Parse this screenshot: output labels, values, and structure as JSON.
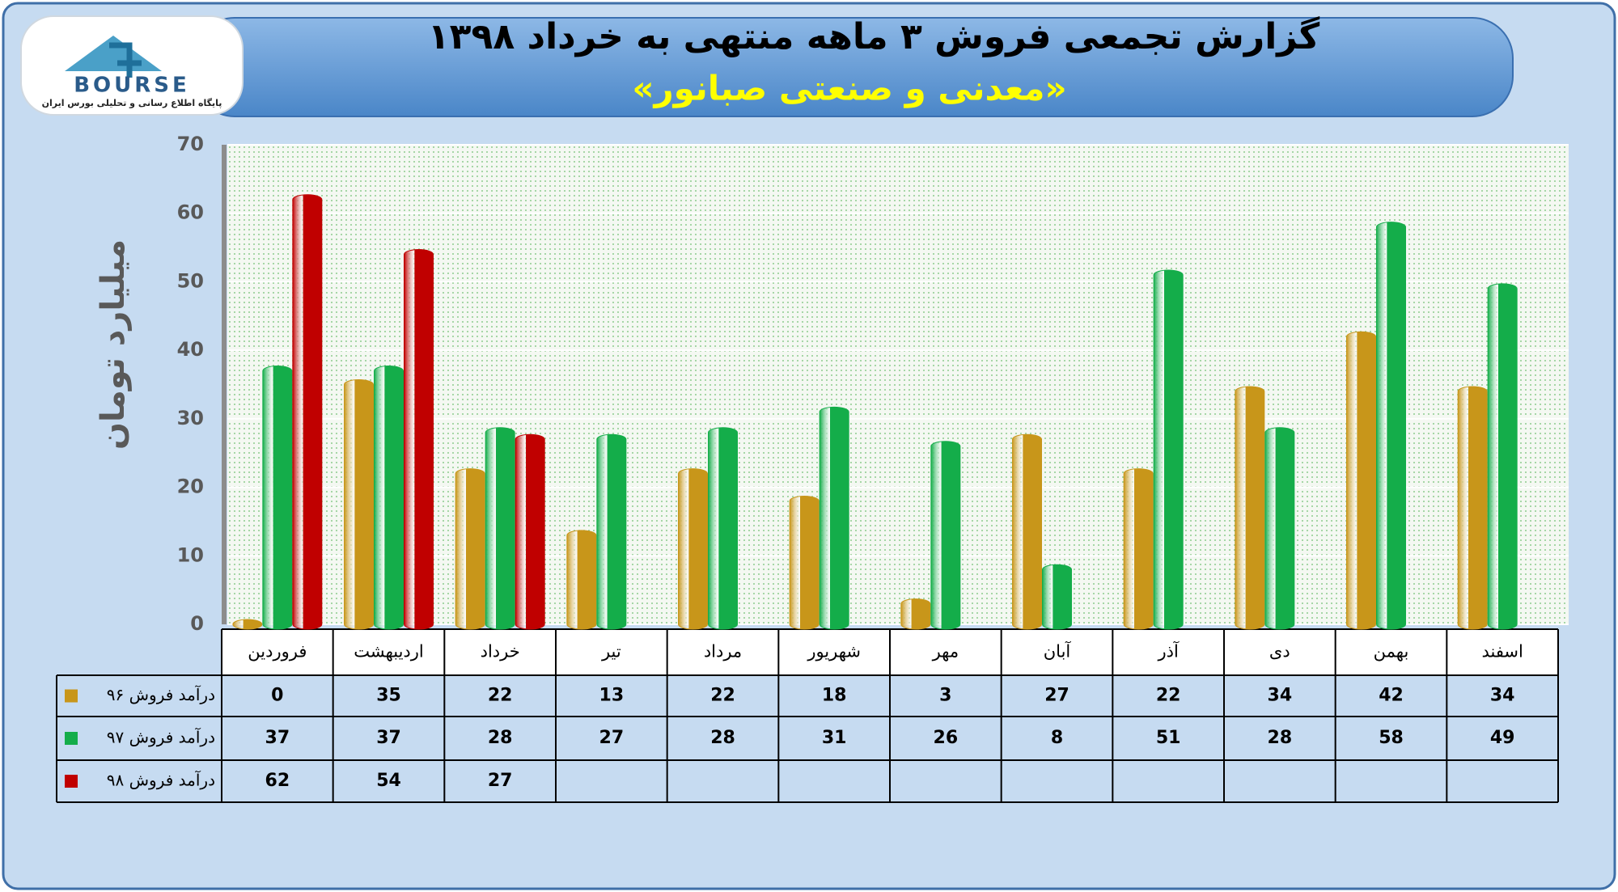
{
  "logo": {
    "name": "BOURSE",
    "tagline": "پایگاه اطلاع رسانی و تحلیلی بورس ایران"
  },
  "chart_data": {
    "type": "bar",
    "title": "گزارش تجمعی فروش ۳ ماهه منتهی به خرداد ۱۳۹۸",
    "subtitle": "«معدنی و صنعتی صبانور»",
    "y_label": "میلیارد تومان",
    "categories": [
      "فروردین",
      "اردیبهشت",
      "خرداد",
      "تیر",
      "مرداد",
      "شهریور",
      "مهر",
      "آبان",
      "آذر",
      "دی",
      "بهمن",
      "اسفند"
    ],
    "series": [
      {
        "name": "درآمد فروش ۹۶",
        "color": "#c8961a",
        "values": [
          0,
          35,
          22,
          13,
          22,
          18,
          3,
          27,
          22,
          34,
          42,
          34
        ]
      },
      {
        "name": "درآمد فروش ۹۷",
        "color": "#14ad4a",
        "values": [
          37,
          37,
          28,
          27,
          28,
          31,
          26,
          8,
          51,
          28,
          58,
          49
        ]
      },
      {
        "name": "درآمد فروش ۹۸",
        "color": "#c00000",
        "values": [
          62,
          54,
          27,
          null,
          null,
          null,
          null,
          null,
          null,
          null,
          null,
          null
        ]
      }
    ],
    "ylim": [
      0,
      70
    ],
    "yticks": [
      0,
      10,
      20,
      30,
      40,
      50,
      60,
      70
    ],
    "grid": true
  }
}
